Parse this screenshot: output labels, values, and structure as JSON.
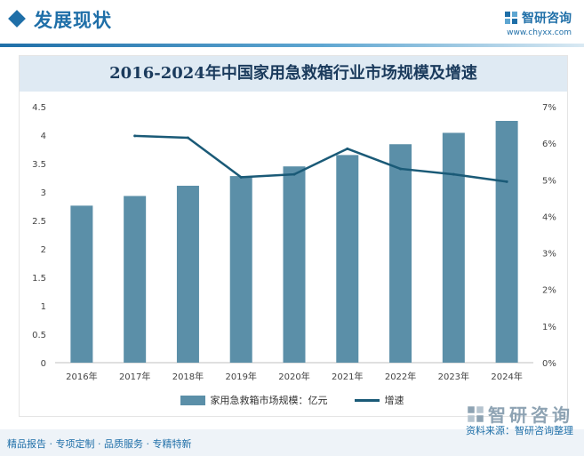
{
  "header": {
    "section_title": "发展现状",
    "brand_name": "智研咨询",
    "brand_url": "www.chyxx.com"
  },
  "chart_data": {
    "type": "bar",
    "title": "2016-2024年中国家用急救箱行业市场规模及增速",
    "categories": [
      "2016年",
      "2017年",
      "2018年",
      "2019年",
      "2020年",
      "2021年",
      "2022年",
      "2023年",
      "2024年"
    ],
    "series": [
      {
        "name": "家用急救箱市场规模：亿元",
        "type": "bar",
        "axis": "left",
        "color": "#5b8fa8",
        "values": [
          2.76,
          2.93,
          3.11,
          3.28,
          3.45,
          3.65,
          3.84,
          4.04,
          4.25
        ]
      },
      {
        "name": "增速",
        "type": "line",
        "axis": "right",
        "color": "#1a5a77",
        "values": [
          null,
          6.2,
          6.15,
          5.07,
          5.15,
          5.85,
          5.3,
          5.15,
          4.95
        ]
      }
    ],
    "left_axis": {
      "min": 0,
      "max": 4.5,
      "ticks": [
        "0",
        "0.5",
        "1",
        "1.5",
        "2",
        "2.5",
        "3",
        "3.5",
        "4",
        "4.5"
      ]
    },
    "right_axis": {
      "min": 0,
      "max": 7,
      "ticks": [
        "0%",
        "1%",
        "2%",
        "3%",
        "4%",
        "5%",
        "6%",
        "7%"
      ]
    },
    "legend_position": "bottom",
    "grid": false
  },
  "footer": {
    "tagline": "精品报告 · 专项定制 · 品质服务 · 专精特新",
    "brand_name": "智研咨询",
    "source": "资料来源：智研咨询整理"
  }
}
